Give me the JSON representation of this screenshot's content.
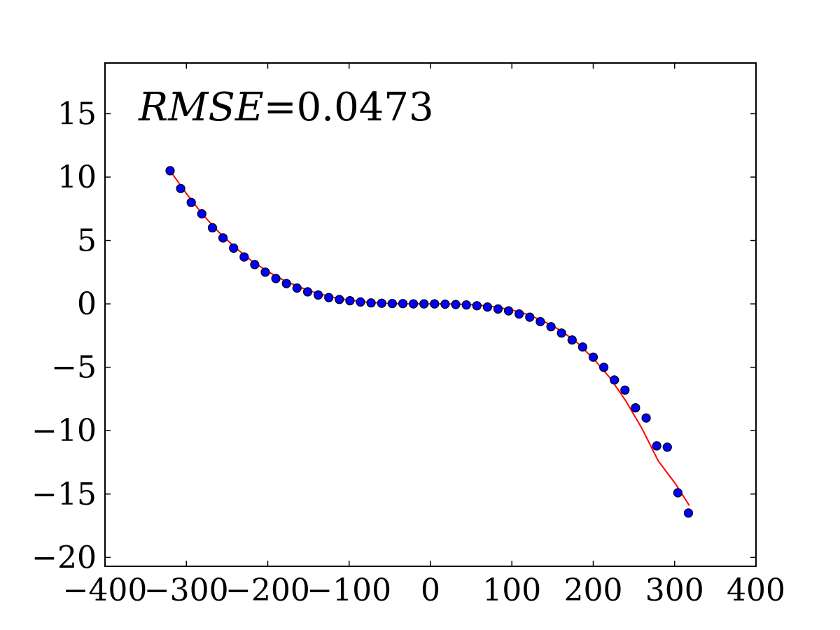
{
  "chart_data": {
    "type": "scatter",
    "xlim": [
      -400,
      400
    ],
    "ylim": [
      -20.7,
      19
    ],
    "x_ticks": [
      -400,
      -300,
      -200,
      -100,
      0,
      100,
      200,
      300,
      400
    ],
    "y_ticks": [
      -20,
      -15,
      -10,
      -5,
      0,
      5,
      10,
      15
    ],
    "x_tick_labels": [
      "−400",
      "−300",
      "−200",
      "−100",
      "0",
      "100",
      "200",
      "300",
      "400"
    ],
    "y_tick_labels": [
      "−20",
      "−15",
      "−10",
      "−5",
      "0",
      "5",
      "10",
      "15"
    ],
    "annotation": {
      "lhs": "RMSE",
      "rhs": "=0.0473"
    },
    "grid": false,
    "series": [
      {
        "kind": "points",
        "color": "#0000ff",
        "edge_color": "#000000",
        "x": [
          -320,
          -307,
          -294,
          -281,
          -268,
          -255,
          -242,
          -229,
          -216,
          -203,
          -190,
          -177,
          -164,
          -151,
          -138,
          -125,
          -112,
          -99,
          -86,
          -73,
          -60,
          -47,
          -34,
          -21,
          -8,
          5,
          18,
          31,
          44,
          57,
          70,
          83,
          96,
          109,
          122,
          135,
          148,
          161,
          174,
          187,
          200,
          213,
          226,
          239,
          252,
          265,
          278,
          291,
          304,
          317
        ],
        "y": [
          10.5,
          9.1,
          8.0,
          7.1,
          6.0,
          5.2,
          4.4,
          3.7,
          3.1,
          2.5,
          2.0,
          1.6,
          1.25,
          0.95,
          0.7,
          0.5,
          0.35,
          0.25,
          0.15,
          0.08,
          0.05,
          0.03,
          0.02,
          0.0,
          0.0,
          0.0,
          -0.02,
          -0.05,
          -0.08,
          -0.15,
          -0.25,
          -0.4,
          -0.55,
          -0.8,
          -1.05,
          -1.4,
          -1.8,
          -2.3,
          -2.85,
          -3.4,
          -4.2,
          -5.0,
          -6.0,
          -6.8,
          -8.2,
          -9.0,
          -11.2,
          -11.3,
          -14.9,
          -16.5
        ]
      },
      {
        "kind": "line",
        "color": "#ff0000",
        "x": [
          -320,
          -300,
          -280,
          -260,
          -240,
          -220,
          -200,
          -180,
          -160,
          -140,
          -120,
          -100,
          -80,
          -60,
          -40,
          -20,
          0,
          20,
          40,
          60,
          80,
          100,
          120,
          140,
          160,
          180,
          200,
          220,
          240,
          260,
          280,
          300,
          318
        ],
        "y": [
          10.5,
          8.7,
          7.05,
          5.65,
          4.45,
          3.4,
          2.55,
          1.85,
          1.3,
          0.85,
          0.52,
          0.3,
          0.15,
          0.06,
          0.01,
          0.0,
          0.0,
          0.0,
          -0.03,
          -0.1,
          -0.24,
          -0.48,
          -0.85,
          -1.4,
          -2.1,
          -3.05,
          -4.3,
          -5.8,
          -7.65,
          -9.85,
          -12.4,
          -14.1,
          -15.9
        ]
      }
    ]
  }
}
